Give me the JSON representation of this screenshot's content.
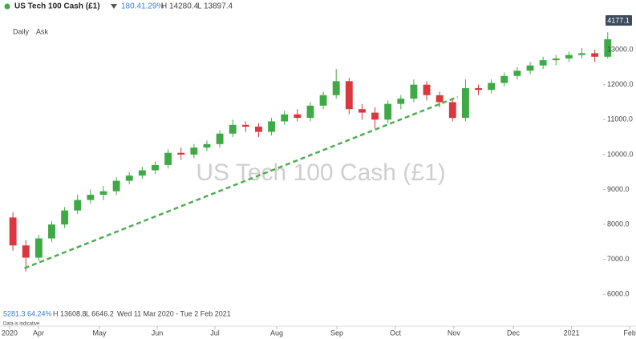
{
  "header": {
    "title": "US Tech 100 Cash (£1)",
    "change": "180.4",
    "change_pct": "1.29%",
    "high": "H 14280.4",
    "low": "L 13897.4",
    "interval": "Daily",
    "side": "Ask"
  },
  "footer": {
    "change": "5281.3",
    "change_pct": "64.24%",
    "high": "H 13608.8",
    "low": "L 6646.2",
    "range": "Wed 11 Mar 2020 - Tue 2 Feb 2021",
    "note": "Data is indicative"
  },
  "chart_data": {
    "type": "candlestick",
    "watermark": "US Tech 100 Cash (£1)",
    "price_tag": "4177.1",
    "up_color": "#3faa45",
    "down_color": "#d8383e",
    "x": [
      0,
      1,
      2,
      3,
      4,
      5,
      6,
      7,
      8,
      9,
      10,
      11,
      12,
      13,
      14,
      15,
      16,
      17,
      18,
      19,
      20,
      21,
      22,
      23,
      24,
      25,
      26,
      27,
      28,
      29,
      30,
      31,
      32,
      33,
      34,
      35,
      36,
      37,
      38,
      39,
      40,
      41,
      42,
      43,
      44,
      45,
      46
    ],
    "open": [
      8200,
      7400,
      7050,
      7600,
      8000,
      8400,
      8700,
      8850,
      8950,
      9250,
      9400,
      9550,
      9700,
      10050,
      10000,
      10200,
      10300,
      10600,
      10850,
      10800,
      10650,
      10950,
      11150,
      11050,
      11400,
      11700,
      12100,
      11300,
      11200,
      11000,
      11450,
      11600,
      12000,
      11700,
      11500,
      11050,
      11900,
      11850,
      12050,
      12250,
      12400,
      12550,
      12700,
      12750,
      12850,
      12900,
      12800
    ],
    "high": [
      8350,
      7550,
      7700,
      8100,
      8500,
      8850,
      9000,
      9100,
      9350,
      9500,
      9650,
      9800,
      10150,
      10200,
      10300,
      10400,
      10700,
      11000,
      10950,
      10900,
      11050,
      11250,
      11300,
      11500,
      11800,
      12450,
      12200,
      11450,
      11350,
      11550,
      11700,
      12150,
      12100,
      11800,
      11600,
      12150,
      12000,
      12150,
      12350,
      12500,
      12650,
      12800,
      12850,
      12950,
      13050,
      13000,
      13500
    ],
    "low": [
      7250,
      6650,
      6950,
      7500,
      7900,
      8300,
      8600,
      8700,
      8850,
      9150,
      9300,
      9450,
      9600,
      9850,
      9900,
      10100,
      10200,
      10500,
      10650,
      10500,
      10550,
      10850,
      10950,
      10950,
      11300,
      11600,
      11150,
      11000,
      10750,
      10900,
      11300,
      11500,
      11550,
      11350,
      10950,
      10950,
      11700,
      11750,
      11950,
      12150,
      12300,
      12450,
      12550,
      12650,
      12750,
      12650,
      12750
    ],
    "close": [
      7400,
      7050,
      7600,
      8000,
      8400,
      8700,
      8850,
      8950,
      9250,
      9400,
      9550,
      9700,
      10050,
      10000,
      10200,
      10300,
      10600,
      10850,
      10800,
      10650,
      10950,
      11150,
      11050,
      11400,
      11700,
      12100,
      11300,
      11200,
      11000,
      11450,
      11600,
      12000,
      11700,
      11500,
      11050,
      11900,
      11850,
      12050,
      12250,
      12400,
      12550,
      12700,
      12750,
      12850,
      12900,
      12800,
      13300
    ],
    "trendline": {
      "color": "#4caf50",
      "x": [
        0.9,
        34.4
      ],
      "y": [
        6750,
        11650
      ]
    },
    "xlim": [
      -1,
      48
    ],
    "xticks": [
      {
        "value": -0.26,
        "label": "2020"
      },
      {
        "value": 1.98,
        "label": "Apr"
      },
      {
        "value": 6.69,
        "label": "May"
      },
      {
        "value": 11.16,
        "label": "Jun"
      },
      {
        "value": 15.62,
        "label": "Jul"
      },
      {
        "value": 20.4,
        "label": "Aug"
      },
      {
        "value": 25.05,
        "label": "Sep"
      },
      {
        "value": 29.58,
        "label": "Oct"
      },
      {
        "value": 34.1,
        "label": "Nov"
      },
      {
        "value": 38.7,
        "label": "Dec"
      },
      {
        "value": 43.2,
        "label": "2021"
      },
      {
        "value": 47.7,
        "label": "Feb"
      }
    ],
    "ylim": [
      5250,
      13850
    ],
    "yticks": [
      {
        "value": 6000,
        "label": "6000.0"
      },
      {
        "value": 7000,
        "label": "7000.0"
      },
      {
        "value": 8000,
        "label": "8000.0"
      },
      {
        "value": 9000,
        "label": "9000.0"
      },
      {
        "value": 10000,
        "label": "10000.0"
      },
      {
        "value": 11000,
        "label": "11000.0"
      },
      {
        "value": 12000,
        "label": "12000.0"
      },
      {
        "value": 13000,
        "label": "13000.0"
      }
    ]
  }
}
